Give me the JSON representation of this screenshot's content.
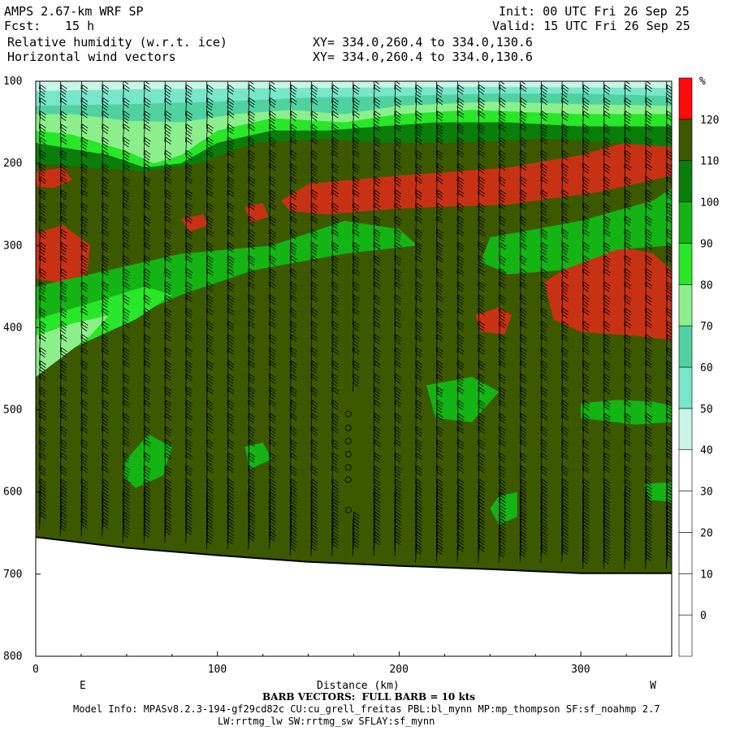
{
  "header": {
    "model": "AMPS 2.67-km WRF SP",
    "init": "Init: 00 UTC Fri 26 Sep 25",
    "fcst_label": "Fcst:",
    "fcst_value": "15 h",
    "valid": "Valid: 15 UTC Fri 26 Sep 25",
    "field1": "Relative humidity (w.r.t. ice)",
    "field2": "Horizontal wind vectors",
    "xy1": "XY= 334.0,260.4 to 334.0,130.6",
    "xy2": "XY= 334.0,260.4 to 334.0,130.6"
  },
  "footer": {
    "barb_note": "BARB VECTORS:  FULL BARB = 10 kts",
    "model_info": "Model Info: MPASv8.2.3-194-gf29cd82c CU:cu_grell_freitas PBL:bl_mynn MP:mp_thompson SF:sf_noahmp 2.7",
    "model_info2": "LW:rrtmg_lw SW:rrtmg_sw SFLAY:sf_mynn"
  },
  "colors": {
    "bg_fill": "#3d5900",
    "levels": [
      {
        "label": "0",
        "color": "#ffffff"
      },
      {
        "label": "10",
        "color": "#ffffff"
      },
      {
        "label": "20",
        "color": "#ffffff"
      },
      {
        "label": "30",
        "color": "#ffffff"
      },
      {
        "label": "40",
        "color": "#c8f5e6"
      },
      {
        "label": "50",
        "color": "#78e6c8"
      },
      {
        "label": "60",
        "color": "#50d2a0"
      },
      {
        "label": "70",
        "color": "#8cef8c"
      },
      {
        "label": "80",
        "color": "#28e628"
      },
      {
        "label": "90",
        "color": "#14b414"
      },
      {
        "label": "100",
        "color": "#0a7d0a"
      },
      {
        "label": "110",
        "color": "#3d5900"
      },
      {
        "label": "120",
        "color": "#c83214"
      }
    ],
    "top_color": "#ff0a0a"
  },
  "chart_data": {
    "type": "heatmap",
    "title": "Relative humidity (w.r.t. ice)",
    "xlabel": "Distance (km)",
    "ylabel": "",
    "x_ticks": [
      0,
      100,
      200,
      300
    ],
    "y_ticks": [
      100,
      200,
      300,
      400,
      500,
      600,
      700,
      800
    ],
    "xlim": [
      0,
      350
    ],
    "ylim": [
      100,
      800
    ],
    "x_end_labels": {
      "left": "E",
      "right": "W"
    },
    "colorbar_unit": "%",
    "colorbar_labels": [
      "0",
      "10",
      "20",
      "30",
      "40",
      "50",
      "60",
      "70",
      "80",
      "90",
      "100",
      "110",
      "120"
    ],
    "terrain_pressure": [
      [
        0,
        655
      ],
      [
        50,
        668
      ],
      [
        100,
        677
      ],
      [
        150,
        685
      ],
      [
        200,
        690
      ],
      [
        250,
        694
      ],
      [
        300,
        699
      ],
      [
        350,
        699
      ]
    ],
    "rh_regions": [
      {
        "level": 120,
        "polygon": [
          [
            0,
            285
          ],
          [
            15,
            275
          ],
          [
            30,
            300
          ],
          [
            28,
            335
          ],
          [
            12,
            345
          ],
          [
            0,
            340
          ]
        ]
      },
      {
        "level": 120,
        "polygon": [
          [
            0,
            210
          ],
          [
            15,
            205
          ],
          [
            20,
            220
          ],
          [
            10,
            230
          ],
          [
            0,
            228
          ]
        ]
      },
      {
        "level": 120,
        "polygon": [
          [
            135,
            245
          ],
          [
            150,
            225
          ],
          [
            200,
            215
          ],
          [
            260,
            205
          ],
          [
            300,
            190
          ],
          [
            340,
            165
          ],
          [
            350,
            160
          ],
          [
            350,
            215
          ],
          [
            310,
            235
          ],
          [
            260,
            250
          ],
          [
            200,
            255
          ],
          [
            160,
            262
          ],
          [
            140,
            258
          ]
        ]
      },
      {
        "level": 120,
        "polygon": [
          [
            280,
            345
          ],
          [
            300,
            315
          ],
          [
            320,
            300
          ],
          [
            340,
            310
          ],
          [
            350,
            330
          ],
          [
            350,
            415
          ],
          [
            330,
            410
          ],
          [
            300,
            405
          ],
          [
            285,
            390
          ]
        ]
      },
      {
        "level": 120,
        "polygon": [
          [
            242,
            385
          ],
          [
            255,
            375
          ],
          [
            262,
            385
          ],
          [
            258,
            408
          ],
          [
            245,
            405
          ]
        ]
      },
      {
        "level": 120,
        "polygon": [
          [
            80,
            268
          ],
          [
            92,
            262
          ],
          [
            95,
            275
          ],
          [
            85,
            283
          ]
        ]
      },
      {
        "level": 120,
        "polygon": [
          [
            115,
            253
          ],
          [
            125,
            248
          ],
          [
            128,
            265
          ],
          [
            118,
            272
          ]
        ]
      },
      {
        "level": 90,
        "polygon": [
          [
            0,
            350
          ],
          [
            40,
            330
          ],
          [
            80,
            310
          ],
          [
            130,
            300
          ],
          [
            170,
            270
          ],
          [
            200,
            280
          ],
          [
            210,
            300
          ],
          [
            170,
            310
          ],
          [
            120,
            330
          ],
          [
            80,
            360
          ],
          [
            40,
            400
          ],
          [
            0,
            430
          ]
        ]
      },
      {
        "level": 90,
        "polygon": [
          [
            250,
            290
          ],
          [
            300,
            270
          ],
          [
            340,
            245
          ],
          [
            350,
            230
          ],
          [
            350,
            300
          ],
          [
            320,
            305
          ],
          [
            290,
            330
          ],
          [
            260,
            335
          ],
          [
            245,
            320
          ]
        ]
      },
      {
        "level": 90,
        "polygon": [
          [
            215,
            470
          ],
          [
            240,
            460
          ],
          [
            255,
            478
          ],
          [
            240,
            515
          ],
          [
            220,
            510
          ]
        ]
      },
      {
        "level": 90,
        "polygon": [
          [
            300,
            492
          ],
          [
            320,
            488
          ],
          [
            340,
            490
          ],
          [
            350,
            495
          ],
          [
            350,
            515
          ],
          [
            330,
            518
          ],
          [
            300,
            510
          ]
        ]
      },
      {
        "level": 90,
        "polygon": [
          [
            50,
            560
          ],
          [
            62,
            530
          ],
          [
            75,
            545
          ],
          [
            70,
            580
          ],
          [
            55,
            595
          ],
          [
            48,
            580
          ]
        ]
      },
      {
        "level": 90,
        "polygon": [
          [
            255,
            605
          ],
          [
            265,
            600
          ],
          [
            265,
            630
          ],
          [
            255,
            640
          ],
          [
            250,
            620
          ]
        ]
      },
      {
        "level": 90,
        "polygon": [
          [
            335,
            590
          ],
          [
            350,
            588
          ],
          [
            350,
            612
          ],
          [
            338,
            610
          ]
        ]
      },
      {
        "level": 90,
        "polygon": [
          [
            115,
            545
          ],
          [
            125,
            540
          ],
          [
            130,
            560
          ],
          [
            118,
            572
          ]
        ]
      },
      {
        "level": 80,
        "polygon": [
          [
            0,
            390
          ],
          [
            30,
            370
          ],
          [
            60,
            350
          ],
          [
            75,
            360
          ],
          [
            55,
            390
          ],
          [
            25,
            420
          ],
          [
            0,
            450
          ]
        ]
      },
      {
        "level": 70,
        "polygon": [
          [
            0,
            410
          ],
          [
            20,
            395
          ],
          [
            40,
            385
          ],
          [
            30,
            410
          ],
          [
            0,
            460
          ]
        ]
      },
      {
        "level": 100,
        "polygon": [
          [
            0,
            120
          ],
          [
            350,
            120
          ],
          [
            350,
            180
          ],
          [
            320,
            175
          ],
          [
            280,
            170
          ],
          [
            230,
            175
          ],
          [
            190,
            175
          ],
          [
            160,
            170
          ],
          [
            120,
            175
          ],
          [
            90,
            200
          ],
          [
            60,
            210
          ],
          [
            30,
            205
          ],
          [
            0,
            200
          ]
        ]
      },
      {
        "level": 80,
        "polygon": [
          [
            0,
            120
          ],
          [
            350,
            120
          ],
          [
            350,
            155
          ],
          [
            300,
            155
          ],
          [
            260,
            150
          ],
          [
            220,
            150
          ],
          [
            190,
            155
          ],
          [
            160,
            160
          ],
          [
            130,
            160
          ],
          [
            100,
            175
          ],
          [
            80,
            200
          ],
          [
            60,
            205
          ],
          [
            40,
            190
          ],
          [
            0,
            175
          ]
        ]
      },
      {
        "level": 70,
        "polygon": [
          [
            0,
            120
          ],
          [
            350,
            120
          ],
          [
            350,
            140
          ],
          [
            300,
            140
          ],
          [
            240,
            135
          ],
          [
            200,
            140
          ],
          [
            170,
            150
          ],
          [
            130,
            145
          ],
          [
            100,
            160
          ],
          [
            80,
            190
          ],
          [
            65,
            200
          ],
          [
            50,
            185
          ],
          [
            20,
            165
          ],
          [
            0,
            160
          ]
        ]
      },
      {
        "level": 60,
        "polygon": [
          [
            0,
            100
          ],
          [
            350,
            100
          ],
          [
            350,
            130
          ],
          [
            300,
            128
          ],
          [
            250,
            125
          ],
          [
            200,
            130
          ],
          [
            170,
            140
          ],
          [
            140,
            135
          ],
          [
            110,
            140
          ],
          [
            80,
            150
          ],
          [
            50,
            148
          ],
          [
            20,
            140
          ],
          [
            0,
            140
          ]
        ]
      },
      {
        "level": 50,
        "polygon": [
          [
            0,
            100
          ],
          [
            350,
            100
          ],
          [
            350,
            118
          ],
          [
            300,
            115
          ],
          [
            250,
            115
          ],
          [
            200,
            118
          ],
          [
            150,
            120
          ],
          [
            100,
            125
          ],
          [
            50,
            128
          ],
          [
            0,
            130
          ]
        ]
      },
      {
        "level": 40,
        "polygon": [
          [
            0,
            100
          ],
          [
            350,
            100
          ],
          [
            350,
            108
          ],
          [
            250,
            107
          ],
          [
            150,
            108
          ],
          [
            50,
            110
          ],
          [
            0,
            112
          ]
        ]
      }
    ],
    "calm_points": [
      [
        172,
        505
      ],
      [
        172,
        522
      ],
      [
        172,
        538
      ],
      [
        172,
        554
      ],
      [
        172,
        570
      ],
      [
        172,
        585
      ],
      [
        172,
        622
      ]
    ]
  }
}
